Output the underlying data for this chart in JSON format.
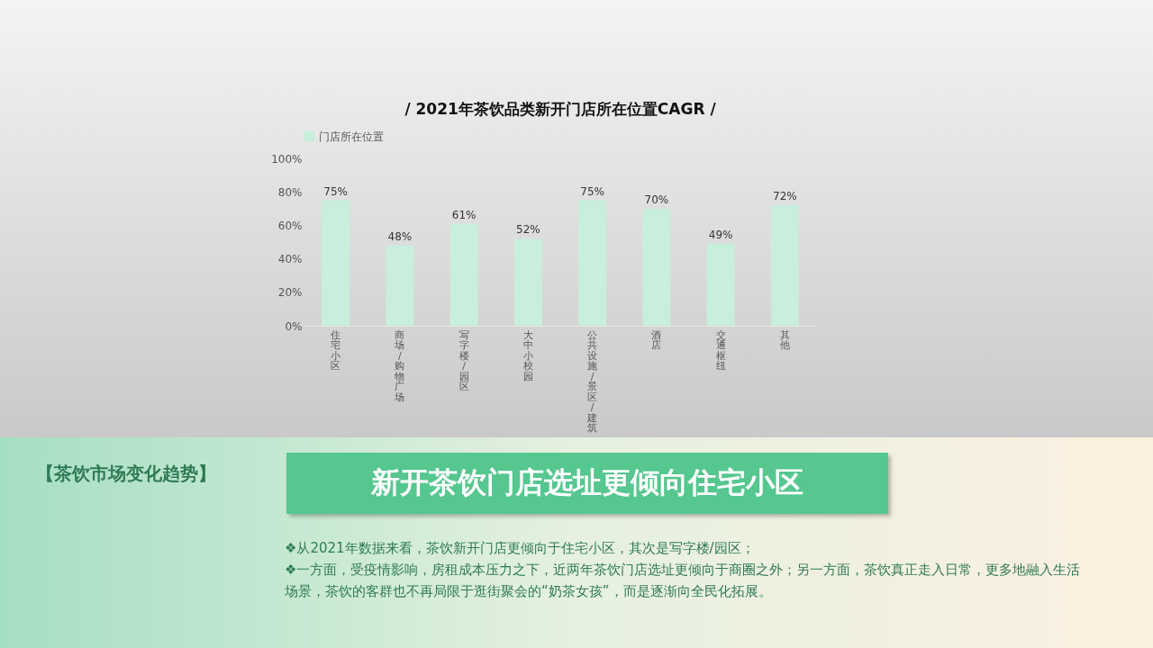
{
  "chart_data": {
    "type": "bar",
    "title": "/ 2021年茶饮品类新开门店所在位置CAGR /",
    "categories": [
      "住宅小区",
      "商场/购物广场",
      "写字楼/园区",
      "大中小校园",
      "公共设施/景区/建筑",
      "酒店",
      "交通枢纽",
      "其他"
    ],
    "series": [
      {
        "name": "门店所在位置",
        "color": "#c8eedc",
        "values": [
          75,
          48,
          61,
          52,
          75,
          70,
          49,
          72
        ],
        "value_labels": [
          "75%",
          "48%",
          "61%",
          "52%",
          "75%",
          "70%",
          "49%",
          "72%"
        ]
      }
    ],
    "ylim": [
      0,
      100
    ],
    "yticks": [
      {
        "value": 0,
        "label": "0%"
      },
      {
        "value": 20,
        "label": "20%"
      },
      {
        "value": 40,
        "label": "40%"
      },
      {
        "value": 60,
        "label": "60%"
      },
      {
        "value": 80,
        "label": "80%"
      },
      {
        "value": 100,
        "label": "100%"
      }
    ],
    "legend": "top",
    "grid": false,
    "annotations": [
      "【茶饮市场变化趋势】",
      "新开茶饮门店选址更倾向住宅小区",
      "❖从2021年数据来看，茶饮新开门店更倾向于住宅小区，其次是写字楼/园区；",
      "❖一方面，受疫情影响，房租成本压力之下，近两年茶饮门店选址更倾向于商圈之外；另一方面，茶饮真正走入日常，更多地融入生活场景，茶饮的客群也不再局限于逛街聚会的“奶茶女孩”，而是逐渐向全民化拓展。"
    ]
  }
}
